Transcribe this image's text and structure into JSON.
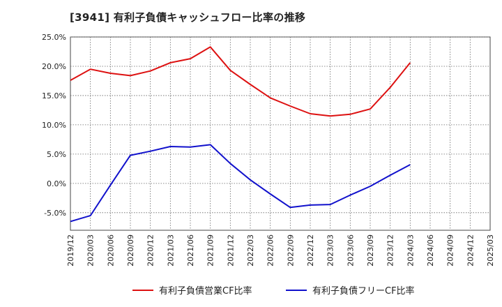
{
  "chart_data": {
    "type": "line",
    "title": "[3941]  有利子負債キャッシュフロー比率の推移",
    "xlabel": "",
    "ylabel": "",
    "x": [
      "2019/12",
      "2020/03",
      "2020/06",
      "2020/09",
      "2020/12",
      "2021/03",
      "2021/06",
      "2021/09",
      "2021/12",
      "2022/03",
      "2022/06",
      "2022/09",
      "2022/12",
      "2023/03",
      "2023/06",
      "2023/09",
      "2023/12",
      "2024/03",
      "2024/06",
      "2024/09",
      "2024/12",
      "2025/03"
    ],
    "y_ticks": [
      "25.0%",
      "20.0%",
      "15.0%",
      "10.0%",
      "5.0%",
      "0.0%",
      "-5.0%"
    ],
    "ylim": [
      -8,
      25
    ],
    "grid": true,
    "legend_position": "bottom",
    "series": [
      {
        "name": "有利子負債営業CF比率",
        "color": "#dd1111",
        "values": [
          17.6,
          19.5,
          18.8,
          18.4,
          19.2,
          20.6,
          21.3,
          23.3,
          19.3,
          16.9,
          14.6,
          13.2,
          11.9,
          11.5,
          11.8,
          12.7,
          16.4,
          20.6,
          null,
          null,
          null,
          null
        ]
      },
      {
        "name": "有利子負債フリーCF比率",
        "color": "#1111cc",
        "values": [
          -6.5,
          -5.5,
          -0.3,
          4.8,
          5.5,
          6.3,
          6.2,
          6.6,
          3.4,
          0.6,
          -1.8,
          -4.1,
          -3.7,
          -3.6,
          -2.0,
          -0.5,
          1.4,
          3.2,
          null,
          null,
          null,
          null
        ]
      }
    ]
  }
}
